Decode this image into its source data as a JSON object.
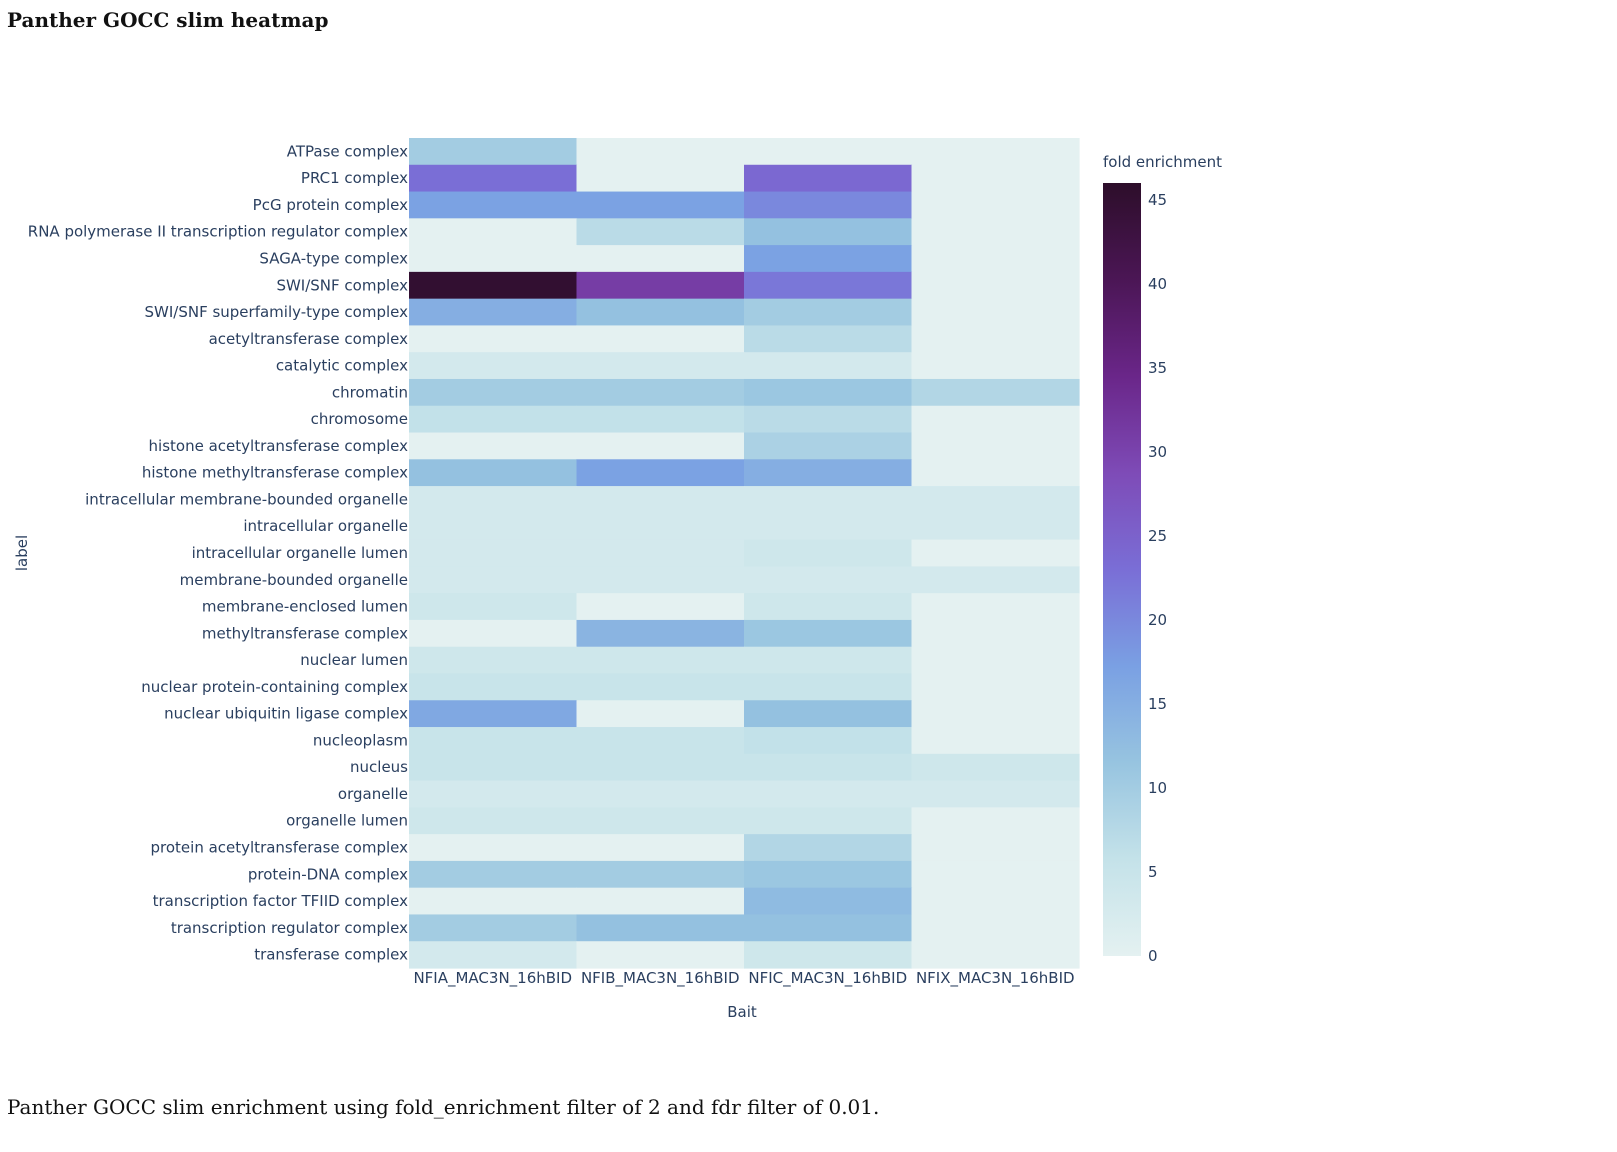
{
  "page": {
    "title": "Panther GOCC slim heatmap",
    "caption": "Panther GOCC slim enrichment using fold_enrichment filter of 2 and fdr filter of 0.01."
  },
  "chart_data": {
    "type": "heatmap",
    "xlabel": "Bait",
    "ylabel": "label",
    "colorbar_title": "fold enrichment",
    "colorbar_ticks": [
      0,
      5,
      10,
      15,
      20,
      25,
      30,
      35,
      40,
      45
    ],
    "zlim": [
      0,
      46
    ],
    "colorscale": [
      "#e4f1f1",
      "#c4e2e9",
      "#97c4e0",
      "#7aa0e3",
      "#7a6ed6",
      "#7e4bb7",
      "#6a2689",
      "#4b1655",
      "#2d0e2a"
    ],
    "x": [
      "NFIA_MAC3N_16hBID",
      "NFIB_MAC3N_16hBID",
      "NFIC_MAC3N_16hBID",
      "NFIX_MAC3N_16hBID"
    ],
    "y": [
      "ATPase complex",
      "PRC1 complex",
      "PcG protein complex",
      "RNA polymerase II transcription regulator complex",
      "SAGA-type complex",
      "SWI/SNF complex",
      "SWI/SNF superfamily-type complex",
      "acetyltransferase complex",
      "catalytic complex",
      "chromatin",
      "chromosome",
      "histone acetyltransferase complex",
      "histone methyltransferase complex",
      "intracellular membrane-bounded organelle",
      "intracellular organelle",
      "intracellular organelle lumen",
      "membrane-bounded organelle",
      "membrane-enclosed lumen",
      "methyltransferase complex",
      "nuclear lumen",
      "nuclear protein-containing complex",
      "nuclear ubiquitin ligase complex",
      "nucleoplasm",
      "nucleus",
      "organelle",
      "organelle lumen",
      "protein acetyltransferase complex",
      "protein-DNA complex",
      "transcription factor TFIID complex",
      "transcription regulator complex",
      "transferase complex"
    ],
    "z": [
      [
        10,
        0,
        0,
        0
      ],
      [
        23,
        0,
        24,
        0
      ],
      [
        17,
        17,
        20,
        0
      ],
      [
        0,
        7,
        12,
        0
      ],
      [
        0,
        0,
        17,
        0
      ],
      [
        45,
        31,
        22,
        0
      ],
      [
        15,
        12,
        10,
        0
      ],
      [
        0,
        0,
        7,
        0
      ],
      [
        3,
        3,
        3,
        0
      ],
      [
        10,
        10,
        11,
        8
      ],
      [
        6,
        6,
        7,
        0
      ],
      [
        0,
        0,
        9,
        0
      ],
      [
        12,
        17,
        15,
        0
      ],
      [
        3,
        3,
        3,
        3
      ],
      [
        3,
        3,
        3,
        3
      ],
      [
        3,
        3,
        4,
        0
      ],
      [
        3,
        3,
        3,
        3
      ],
      [
        4,
        0,
        4,
        0
      ],
      [
        0,
        14,
        11,
        0
      ],
      [
        4,
        4,
        4,
        0
      ],
      [
        5,
        5,
        5,
        0
      ],
      [
        16,
        0,
        12,
        0
      ],
      [
        5,
        5,
        6,
        0
      ],
      [
        5,
        5,
        5,
        4
      ],
      [
        3,
        3,
        3,
        3
      ],
      [
        4,
        4,
        4,
        0
      ],
      [
        0,
        0,
        8,
        0
      ],
      [
        10,
        10,
        11,
        0
      ],
      [
        0,
        0,
        13,
        0
      ],
      [
        10,
        12,
        12,
        0
      ],
      [
        3,
        0,
        4,
        0
      ]
    ]
  }
}
